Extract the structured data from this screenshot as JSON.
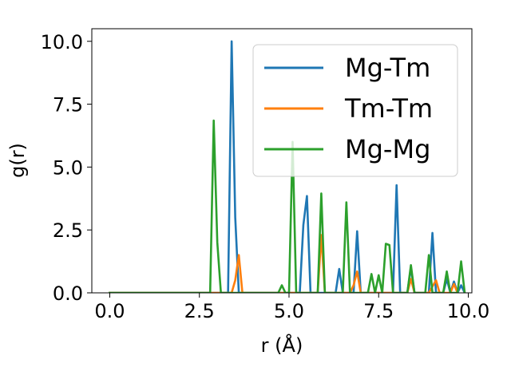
{
  "chart_data": {
    "type": "line",
    "title": "",
    "xlabel": "r (Å)",
    "ylabel": "g(r)",
    "xlim": [
      -0.5,
      10.1
    ],
    "ylim": [
      0,
      10.5
    ],
    "xticks": [
      "0.0",
      "2.5",
      "5.0",
      "7.5",
      "10.0"
    ],
    "xtick_values": [
      0,
      2.5,
      5,
      7.5,
      10
    ],
    "yticks": [
      "0.0",
      "2.5",
      "5.0",
      "7.5",
      "10.0"
    ],
    "ytick_values": [
      0,
      2.5,
      5,
      7.5,
      10
    ],
    "grid": false,
    "legend_position": "top-right",
    "series": [
      {
        "name": "Mg-Tm",
        "color": "#1f77b4",
        "x": [
          0,
          3.3,
          3.4,
          3.5,
          3.6,
          5.3,
          5.4,
          5.5,
          5.6,
          6.3,
          6.4,
          6.5,
          6.8,
          6.9,
          7.0,
          7.9,
          8.0,
          8.1,
          8.3,
          8.4,
          8.5,
          8.9,
          9.0,
          9.1,
          9.3,
          9.4,
          9.5,
          9.6,
          9.7,
          9.8,
          9.9
        ],
        "y": [
          0,
          0,
          10.0,
          3.0,
          0,
          0,
          2.7,
          3.85,
          0,
          0,
          0.95,
          0,
          0,
          2.45,
          0,
          0,
          4.28,
          0,
          0,
          1.0,
          0,
          0,
          2.38,
          0,
          0,
          0.55,
          0,
          0.45,
          0,
          0.3,
          0
        ]
      },
      {
        "name": "Tm-Tm",
        "color": "#ff7f0e",
        "x": [
          0,
          3.4,
          3.5,
          3.6,
          3.7,
          5.8,
          5.9,
          6.0,
          6.7,
          6.8,
          6.9,
          7.0,
          8.3,
          8.4,
          8.5,
          8.9,
          9.0,
          9.1,
          9.2,
          9.5,
          9.6,
          9.7
        ],
        "y": [
          0,
          0,
          0.5,
          1.5,
          0,
          0,
          2.3,
          0,
          0,
          0.3,
          0.85,
          0,
          0,
          0.55,
          0,
          0,
          0.25,
          0.5,
          0,
          0,
          0.35,
          0
        ]
      },
      {
        "name": "Mg-Mg",
        "color": "#2ca02c",
        "x": [
          0,
          2.8,
          2.9,
          3.0,
          3.1,
          4.7,
          4.8,
          4.9,
          5.0,
          5.1,
          5.2,
          5.8,
          5.9,
          6.0,
          6.5,
          6.6,
          6.7,
          7.2,
          7.3,
          7.4,
          7.5,
          7.6,
          7.7,
          7.8,
          7.9,
          8.0,
          8.3,
          8.4,
          8.5,
          8.6,
          8.8,
          8.9,
          9.0,
          9.3,
          9.4,
          9.5,
          9.7,
          9.8,
          9.9
        ],
        "y": [
          0,
          0,
          6.85,
          2.0,
          0,
          0,
          0.3,
          0,
          0,
          6.0,
          0,
          0,
          3.95,
          0,
          0,
          3.6,
          0,
          0,
          0.75,
          0,
          0.7,
          0,
          1.95,
          1.9,
          0,
          0,
          0,
          1.1,
          0,
          0,
          0,
          1.5,
          0,
          0,
          0.85,
          0,
          0,
          1.25,
          0
        ]
      }
    ]
  }
}
